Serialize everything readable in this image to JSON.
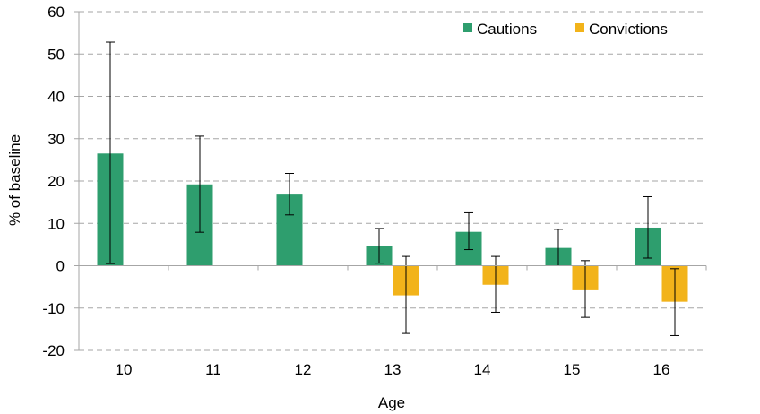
{
  "chart_data": {
    "type": "bar",
    "title": "",
    "xlabel": "Age",
    "ylabel": "% of baseline",
    "ylim": [
      -20,
      60
    ],
    "yticks": [
      -20,
      -10,
      0,
      10,
      20,
      30,
      40,
      50,
      60
    ],
    "grid": true,
    "legend_position": "top-right",
    "categories": [
      "10",
      "11",
      "12",
      "13",
      "14",
      "15",
      "16"
    ],
    "series": [
      {
        "name": "Cautions",
        "color": "#2e9e6e",
        "values": [
          26.5,
          19.2,
          16.8,
          4.6,
          8.0,
          4.2,
          9.0
        ],
        "error_low": [
          0.5,
          7.9,
          12.0,
          0.6,
          3.8,
          0.0,
          1.8
        ],
        "error_high": [
          52.8,
          30.6,
          21.8,
          8.8,
          12.5,
          8.6,
          16.3
        ]
      },
      {
        "name": "Convictions",
        "color": "#f2b31a",
        "values": [
          null,
          null,
          null,
          -7.0,
          -4.5,
          -5.8,
          -8.5
        ],
        "error_low": [
          null,
          null,
          null,
          -16.0,
          -11.0,
          -12.2,
          -16.5
        ],
        "error_high": [
          null,
          null,
          null,
          2.2,
          2.2,
          1.2,
          -0.7
        ]
      }
    ]
  }
}
